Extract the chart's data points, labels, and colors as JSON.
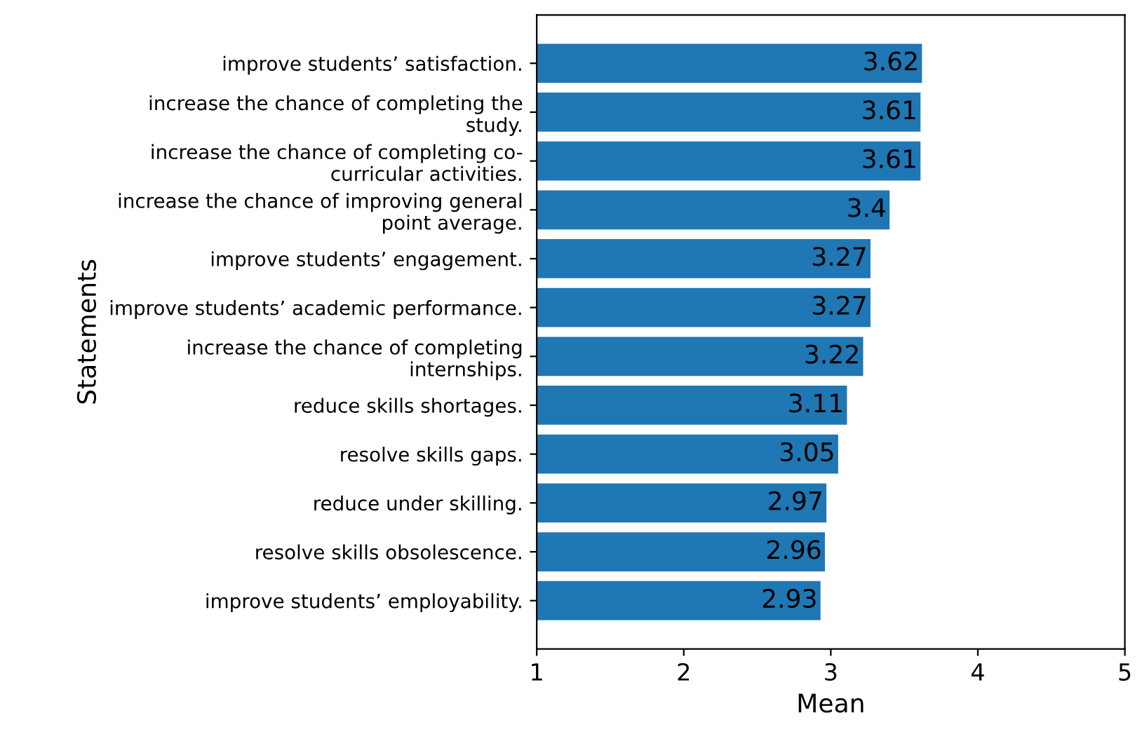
{
  "chart_data": {
    "type": "bar",
    "orientation": "horizontal",
    "xlabel": "Mean",
    "ylabel": "Statements",
    "categories": [
      "improve students’ satisfaction.",
      "increase the chance of completing the\nstudy.",
      "increase the chance of completing co-\ncurricular activities.",
      "increase the chance of improving general\npoint average.",
      "improve students’ engagement.",
      "improve students’ academic performance.",
      "increase the chance of completing\ninternships.",
      "reduce skills shortages.",
      "resolve skills gaps.",
      "reduce under skilling.",
      "resolve skills obsolescence.",
      "improve students’ employability."
    ],
    "values": [
      3.62,
      3.61,
      3.61,
      3.4,
      3.27,
      3.27,
      3.22,
      3.11,
      3.05,
      2.97,
      2.96,
      2.93
    ],
    "color": "#1f77b4",
    "xlim": [
      1,
      5
    ],
    "xticks": [
      1,
      2,
      3,
      4,
      5
    ],
    "data_labels": true,
    "grid": false
  }
}
